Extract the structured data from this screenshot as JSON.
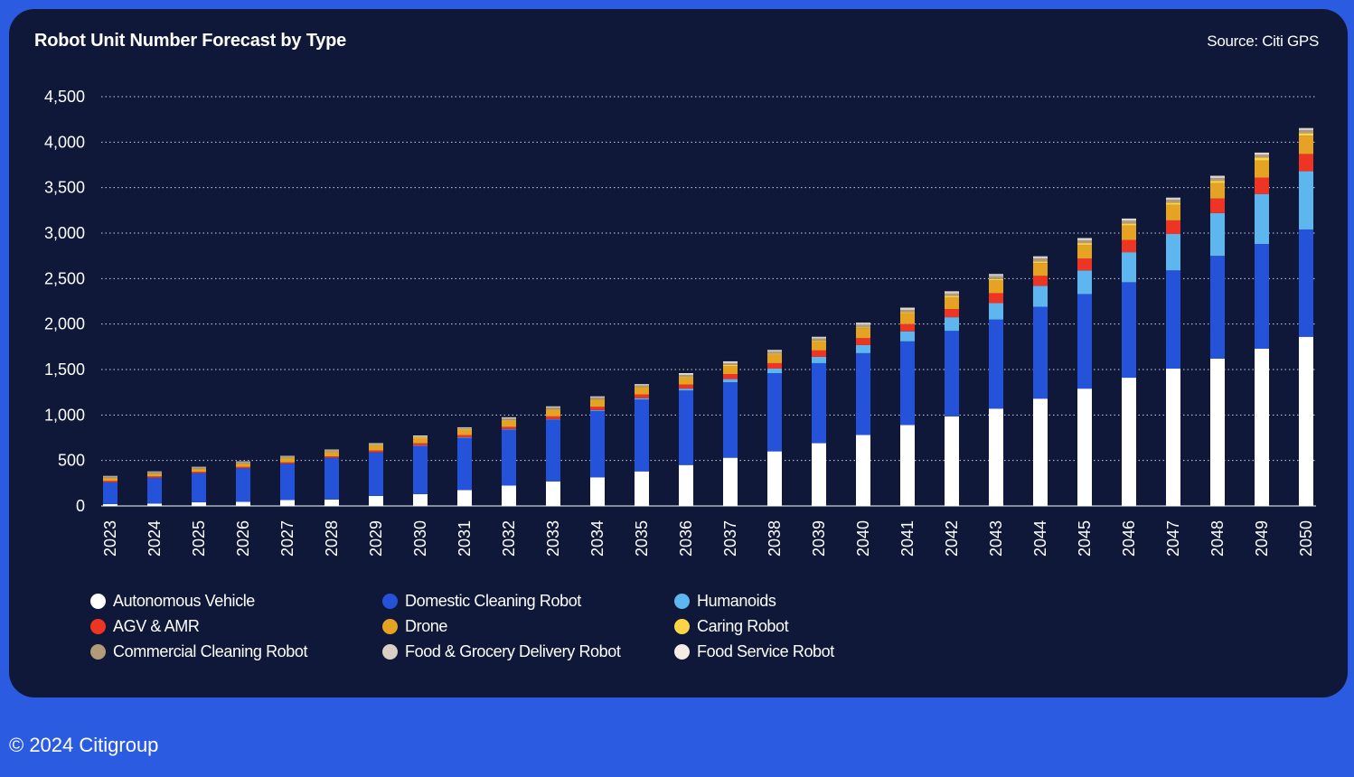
{
  "header": {
    "title": "Robot Unit Number Forecast by Type",
    "source": "Source: Citi GPS"
  },
  "footer": {
    "copyright": "© 2024 Citigroup"
  },
  "chart_data": {
    "type": "bar",
    "stacked": true,
    "title": "Robot Unit Number Forecast by Type",
    "xlabel": "",
    "ylabel": "",
    "ylim": [
      0,
      4500
    ],
    "yticks": [
      0,
      500,
      1000,
      1500,
      2000,
      2500,
      3000,
      3500,
      4000,
      4500
    ],
    "ytick_labels": [
      "0",
      "500",
      "1,000",
      "1,500",
      "2,000",
      "2,500",
      "3,000",
      "3,500",
      "4,000",
      "4,500"
    ],
    "grid": true,
    "legend_position": "bottom",
    "categories": [
      "2023",
      "2024",
      "2025",
      "2026",
      "2027",
      "2028",
      "2029",
      "2030",
      "2031",
      "2032",
      "2033",
      "2034",
      "2035",
      "2036",
      "2037",
      "2038",
      "2039",
      "2040",
      "2041",
      "2042",
      "2043",
      "2044",
      "2045",
      "2046",
      "2047",
      "2048",
      "2049",
      "2050"
    ],
    "series": [
      {
        "name": "Autonomous Vehicle",
        "color": "#ffffff",
        "values": [
          20,
          25,
          40,
          45,
          65,
          70,
          110,
          130,
          175,
          225,
          270,
          315,
          380,
          450,
          530,
          600,
          690,
          780,
          890,
          985,
          1070,
          1180,
          1290,
          1410,
          1510,
          1620,
          1730,
          1860
        ]
      },
      {
        "name": "Domestic Cleaning Robot",
        "color": "#2452d8",
        "values": [
          240,
          285,
          320,
          370,
          400,
          460,
          480,
          530,
          575,
          615,
          680,
          730,
          790,
          820,
          830,
          860,
          880,
          900,
          920,
          940,
          980,
          1010,
          1040,
          1050,
          1080,
          1130,
          1150,
          1180
        ]
      },
      {
        "name": "Humanoids",
        "color": "#5db6ee",
        "values": [
          0,
          0,
          0,
          0,
          0,
          0,
          0,
          5,
          5,
          5,
          5,
          10,
          15,
          20,
          35,
          50,
          70,
          90,
          110,
          150,
          180,
          230,
          260,
          330,
          400,
          470,
          550,
          640
        ]
      },
      {
        "name": "AGV & AMR",
        "color": "#ee3423",
        "values": [
          15,
          15,
          15,
          15,
          15,
          15,
          20,
          25,
          25,
          25,
          30,
          35,
          40,
          45,
          55,
          60,
          70,
          75,
          80,
          90,
          110,
          110,
          130,
          135,
          150,
          160,
          180,
          190
        ]
      },
      {
        "name": "Drone",
        "color": "#e6a323",
        "values": [
          30,
          30,
          30,
          35,
          45,
          50,
          55,
          60,
          60,
          70,
          75,
          80,
          80,
          80,
          90,
          95,
          100,
          110,
          120,
          130,
          140,
          140,
          150,
          160,
          170,
          170,
          190,
          200
        ]
      },
      {
        "name": "Caring Robot",
        "color": "#fcd547",
        "values": [
          5,
          5,
          5,
          5,
          5,
          5,
          5,
          5,
          5,
          5,
          5,
          5,
          5,
          5,
          10,
          10,
          10,
          10,
          10,
          15,
          15,
          20,
          20,
          20,
          25,
          25,
          30,
          30
        ]
      },
      {
        "name": "Commercial Cleaning Robot",
        "color": "#b39a78",
        "values": [
          10,
          10,
          10,
          10,
          10,
          10,
          10,
          10,
          10,
          15,
          15,
          15,
          15,
          20,
          20,
          20,
          20,
          25,
          25,
          25,
          30,
          30,
          30,
          30,
          30,
          30,
          30,
          30
        ]
      },
      {
        "name": "Food & Grocery Delivery Robot",
        "color": "#d8d0c4",
        "values": [
          5,
          5,
          5,
          5,
          5,
          5,
          5,
          5,
          5,
          10,
          10,
          10,
          10,
          10,
          10,
          10,
          10,
          15,
          15,
          15,
          15,
          15,
          15,
          15,
          15,
          15,
          15,
          15
        ]
      },
      {
        "name": "Food Service Robot",
        "color": "#f3ede6",
        "values": [
          5,
          5,
          5,
          5,
          5,
          5,
          5,
          5,
          5,
          5,
          5,
          5,
          5,
          10,
          10,
          10,
          10,
          10,
          10,
          10,
          10,
          10,
          10,
          10,
          10,
          10,
          10,
          10
        ]
      }
    ]
  }
}
